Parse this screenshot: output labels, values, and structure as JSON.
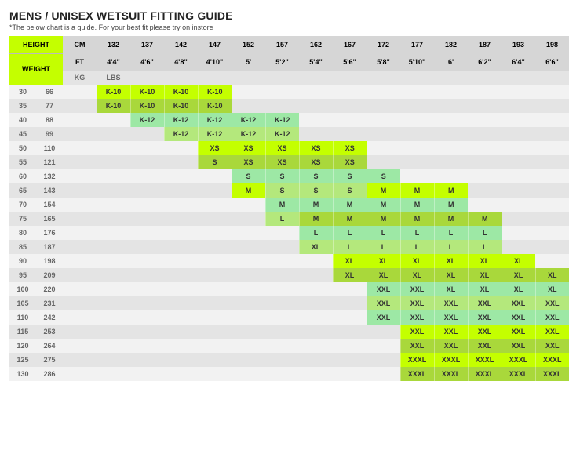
{
  "title": "MENS / UNISEX WETSUIT FITTING GUIDE",
  "subtitle": "*The below chart is a guide. For your best fit please try on instore",
  "labels": {
    "height": "HEIGHT",
    "weight": "WEIGHT",
    "cm": "CM",
    "ft": "FT",
    "kg": "KG",
    "lbs": "LBS"
  },
  "heights_cm": [
    "132",
    "137",
    "142",
    "147",
    "152",
    "157",
    "162",
    "167",
    "172",
    "177",
    "182",
    "187",
    "193",
    "198"
  ],
  "heights_ft": [
    "4'4\"",
    "4'6\"",
    "4'8\"",
    "4'10\"",
    "5'",
    "5'2\"",
    "5'4\"",
    "5'6\"",
    "5'8\"",
    "5'10\"",
    "6'",
    "6'2\"",
    "6'4\"",
    "6'6\""
  ],
  "weights": [
    {
      "kg": "30",
      "lbs": "66"
    },
    {
      "kg": "35",
      "lbs": "77"
    },
    {
      "kg": "40",
      "lbs": "88"
    },
    {
      "kg": "45",
      "lbs": "99"
    },
    {
      "kg": "50",
      "lbs": "110"
    },
    {
      "kg": "55",
      "lbs": "121"
    },
    {
      "kg": "60",
      "lbs": "132"
    },
    {
      "kg": "65",
      "lbs": "143"
    },
    {
      "kg": "70",
      "lbs": "154"
    },
    {
      "kg": "75",
      "lbs": "165"
    },
    {
      "kg": "80",
      "lbs": "176"
    },
    {
      "kg": "85",
      "lbs": "187"
    },
    {
      "kg": "90",
      "lbs": "198"
    },
    {
      "kg": "95",
      "lbs": "209"
    },
    {
      "kg": "100",
      "lbs": "220"
    },
    {
      "kg": "105",
      "lbs": "231"
    },
    {
      "kg": "110",
      "lbs": "242"
    },
    {
      "kg": "115",
      "lbs": "253"
    },
    {
      "kg": "120",
      "lbs": "264"
    },
    {
      "kg": "125",
      "lbs": "275"
    },
    {
      "kg": "130",
      "lbs": "286"
    }
  ],
  "colors": {
    "lime": "#c4ff00",
    "olive": "#a9d83b",
    "green": "#9de8a5",
    "mid": "#b4e87c",
    "row_even": "#f2f2f2",
    "row_odd": "#e4e4e4",
    "hdr_grey": "#d6d6d6"
  },
  "grid": [
    [
      [
        "K-10",
        "lime"
      ],
      [
        "K-10",
        "lime"
      ],
      [
        "K-10",
        "lime"
      ],
      [
        "K-10",
        "lime"
      ],
      null,
      null,
      null,
      null,
      null,
      null,
      null,
      null,
      null,
      null
    ],
    [
      [
        "K-10",
        "olive"
      ],
      [
        "K-10",
        "olive"
      ],
      [
        "K-10",
        "olive"
      ],
      [
        "K-10",
        "olive"
      ],
      null,
      null,
      null,
      null,
      null,
      null,
      null,
      null,
      null,
      null
    ],
    [
      null,
      [
        "K-12",
        "green"
      ],
      [
        "K-12",
        "green"
      ],
      [
        "K-12",
        "green"
      ],
      [
        "K-12",
        "green"
      ],
      [
        "K-12",
        "green"
      ],
      null,
      null,
      null,
      null,
      null,
      null,
      null,
      null
    ],
    [
      null,
      null,
      [
        "K-12",
        "mid"
      ],
      [
        "K-12",
        "mid"
      ],
      [
        "K-12",
        "mid"
      ],
      [
        "K-12",
        "mid"
      ],
      null,
      null,
      null,
      null,
      null,
      null,
      null,
      null
    ],
    [
      null,
      null,
      null,
      [
        "XS",
        "lime"
      ],
      [
        "XS",
        "lime"
      ],
      [
        "XS",
        "lime"
      ],
      [
        "XS",
        "lime"
      ],
      [
        "XS",
        "lime"
      ],
      null,
      null,
      null,
      null,
      null,
      null
    ],
    [
      null,
      null,
      null,
      [
        "S",
        "olive"
      ],
      [
        "XS",
        "olive"
      ],
      [
        "XS",
        "olive"
      ],
      [
        "XS",
        "olive"
      ],
      [
        "XS",
        "olive"
      ],
      null,
      null,
      null,
      null,
      null,
      null
    ],
    [
      null,
      null,
      null,
      null,
      [
        "S",
        "green"
      ],
      [
        "S",
        "green"
      ],
      [
        "S",
        "green"
      ],
      [
        "S",
        "green"
      ],
      [
        "S",
        "green"
      ],
      null,
      null,
      null,
      null,
      null
    ],
    [
      null,
      null,
      null,
      null,
      [
        "M",
        "lime"
      ],
      [
        "S",
        "mid"
      ],
      [
        "S",
        "mid"
      ],
      [
        "S",
        "mid"
      ],
      [
        "M",
        "lime"
      ],
      [
        "M",
        "lime"
      ],
      [
        "M",
        "lime"
      ],
      null,
      null,
      null
    ],
    [
      null,
      null,
      null,
      null,
      null,
      [
        "M",
        "green"
      ],
      [
        "M",
        "green"
      ],
      [
        "M",
        "green"
      ],
      [
        "M",
        "green"
      ],
      [
        "M",
        "green"
      ],
      [
        "M",
        "green"
      ],
      null,
      null,
      null
    ],
    [
      null,
      null,
      null,
      null,
      null,
      [
        "L",
        "mid"
      ],
      [
        "M",
        "olive"
      ],
      [
        "M",
        "olive"
      ],
      [
        "M",
        "olive"
      ],
      [
        "M",
        "olive"
      ],
      [
        "M",
        "olive"
      ],
      [
        "M",
        "olive"
      ],
      null,
      null
    ],
    [
      null,
      null,
      null,
      null,
      null,
      null,
      [
        "L",
        "green"
      ],
      [
        "L",
        "green"
      ],
      [
        "L",
        "green"
      ],
      [
        "L",
        "green"
      ],
      [
        "L",
        "green"
      ],
      [
        "L",
        "green"
      ],
      null,
      null
    ],
    [
      null,
      null,
      null,
      null,
      null,
      null,
      [
        "XL",
        "mid"
      ],
      [
        "L",
        "mid"
      ],
      [
        "L",
        "mid"
      ],
      [
        "L",
        "mid"
      ],
      [
        "L",
        "mid"
      ],
      [
        "L",
        "mid"
      ],
      null,
      null
    ],
    [
      null,
      null,
      null,
      null,
      null,
      null,
      null,
      [
        "XL",
        "lime"
      ],
      [
        "XL",
        "lime"
      ],
      [
        "XL",
        "lime"
      ],
      [
        "XL",
        "lime"
      ],
      [
        "XL",
        "lime"
      ],
      [
        "XL",
        "lime"
      ],
      null
    ],
    [
      null,
      null,
      null,
      null,
      null,
      null,
      null,
      [
        "XL",
        "olive"
      ],
      [
        "XL",
        "olive"
      ],
      [
        "XL",
        "olive"
      ],
      [
        "XL",
        "olive"
      ],
      [
        "XL",
        "olive"
      ],
      [
        "XL",
        "olive"
      ],
      [
        "XL",
        "olive"
      ]
    ],
    [
      null,
      null,
      null,
      null,
      null,
      null,
      null,
      null,
      [
        "XXL",
        "green"
      ],
      [
        "XXL",
        "green"
      ],
      [
        "XL",
        "green"
      ],
      [
        "XL",
        "green"
      ],
      [
        "XL",
        "green"
      ],
      [
        "XL",
        "green"
      ]
    ],
    [
      null,
      null,
      null,
      null,
      null,
      null,
      null,
      null,
      [
        "XXL",
        "mid"
      ],
      [
        "XXL",
        "mid"
      ],
      [
        "XXL",
        "mid"
      ],
      [
        "XXL",
        "mid"
      ],
      [
        "XXL",
        "mid"
      ],
      [
        "XXL",
        "mid"
      ]
    ],
    [
      null,
      null,
      null,
      null,
      null,
      null,
      null,
      null,
      [
        "XXL",
        "green"
      ],
      [
        "XXL",
        "green"
      ],
      [
        "XXL",
        "green"
      ],
      [
        "XXL",
        "green"
      ],
      [
        "XXL",
        "green"
      ],
      [
        "XXL",
        "green"
      ]
    ],
    [
      null,
      null,
      null,
      null,
      null,
      null,
      null,
      null,
      null,
      [
        "XXL",
        "lime"
      ],
      [
        "XXL",
        "lime"
      ],
      [
        "XXL",
        "lime"
      ],
      [
        "XXL",
        "lime"
      ],
      [
        "XXL",
        "lime"
      ]
    ],
    [
      null,
      null,
      null,
      null,
      null,
      null,
      null,
      null,
      null,
      [
        "XXL",
        "olive"
      ],
      [
        "XXL",
        "olive"
      ],
      [
        "XXL",
        "olive"
      ],
      [
        "XXL",
        "olive"
      ],
      [
        "XXL",
        "olive"
      ]
    ],
    [
      null,
      null,
      null,
      null,
      null,
      null,
      null,
      null,
      null,
      [
        "XXXL",
        "lime"
      ],
      [
        "XXXL",
        "lime"
      ],
      [
        "XXXL",
        "lime"
      ],
      [
        "XXXL",
        "lime"
      ],
      [
        "XXXL",
        "lime"
      ]
    ],
    [
      null,
      null,
      null,
      null,
      null,
      null,
      null,
      null,
      null,
      [
        "XXXL",
        "olive"
      ],
      [
        "XXXL",
        "olive"
      ],
      [
        "XXXL",
        "olive"
      ],
      [
        "XXXL",
        "olive"
      ],
      [
        "XXXL",
        "olive"
      ]
    ]
  ]
}
